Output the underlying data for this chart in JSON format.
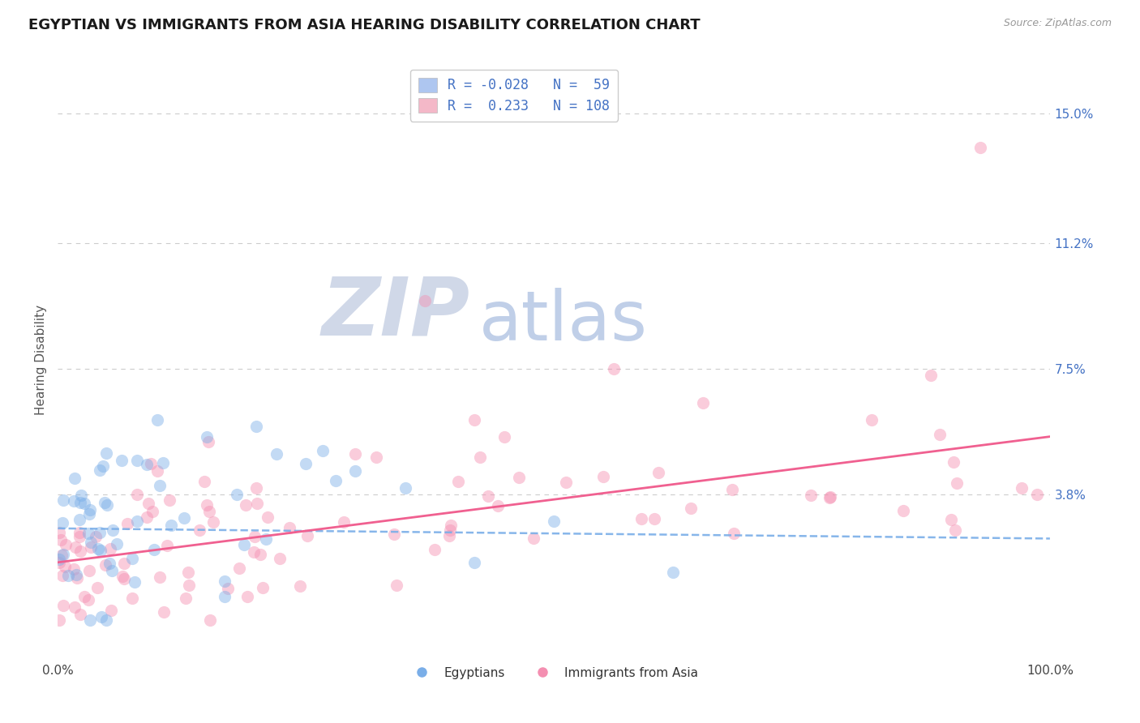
{
  "title": "EGYPTIAN VS IMMIGRANTS FROM ASIA HEARING DISABILITY CORRELATION CHART",
  "source": "Source: ZipAtlas.com",
  "ylabel": "Hearing Disability",
  "y_tick_labels": [
    "3.8%",
    "7.5%",
    "11.2%",
    "15.0%"
  ],
  "y_tick_values": [
    0.038,
    0.075,
    0.112,
    0.15
  ],
  "x_range": [
    0.0,
    1.0
  ],
  "y_range": [
    -0.01,
    0.165
  ],
  "egyptians_R": -0.028,
  "egyptians_N": 59,
  "immigrants_R": 0.233,
  "immigrants_N": 108,
  "blue_color": "#7aaee8",
  "pink_color": "#f48fb1",
  "blue_line_color": "#7aaee8",
  "pink_line_color": "#f06090",
  "watermark_ZIP": "ZIP",
  "watermark_atlas": "atlas",
  "watermark_color_ZIP": "#d0d8e8",
  "watermark_color_atlas": "#c0cfe8",
  "title_fontsize": 13,
  "tick_label_color": "#4472c4",
  "background_color": "#ffffff",
  "grid_color": "#cccccc",
  "legend_blue_patch": "#aec6f0",
  "legend_pink_patch": "#f4b8c8",
  "legend_text_blue": "R = -0.028   N =  59",
  "legend_text_pink": "R =  0.233   N = 108"
}
